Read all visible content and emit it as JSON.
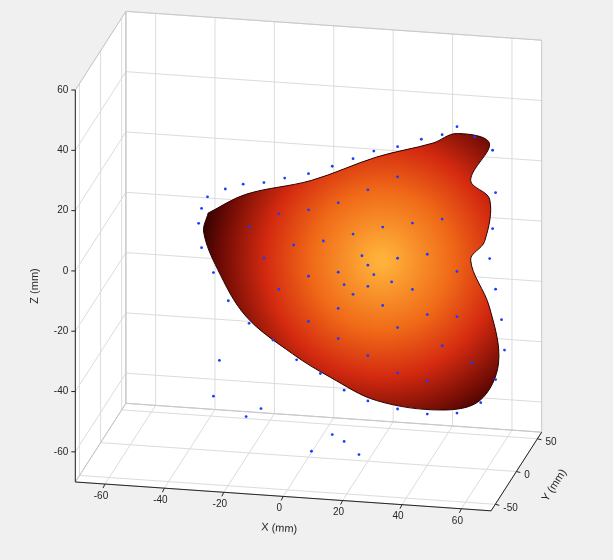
{
  "chart_data": {
    "type": "scatter3d",
    "x_label": "X (mm)",
    "y_label": "Y (mm)",
    "z_label": "Z (mm)",
    "xlim": [
      -70,
      70
    ],
    "ylim": [
      -60,
      60
    ],
    "zlim": [
      -70,
      60
    ],
    "xticks": [
      -60,
      -40,
      -20,
      0,
      20,
      40,
      60
    ],
    "yticks": [
      -50,
      0,
      50
    ],
    "zticks": [
      -60,
      -40,
      -20,
      0,
      20,
      40,
      60
    ],
    "grid": true,
    "series": [
      {
        "type": "surface",
        "color": "#d42a10",
        "values": [
          [
            -33.8,
            0,
            8.6
          ],
          [
            -21.1,
            0,
            15.7
          ],
          [
            0.9,
            0,
            21.8
          ],
          [
            23.0,
            0,
            31.1
          ],
          [
            41.9,
            0,
            37.0
          ],
          [
            49.8,
            0,
            40.7
          ],
          [
            60.9,
            0,
            38.3
          ],
          [
            54.6,
            0,
            25.5
          ],
          [
            61.0,
            0,
            19.7
          ],
          [
            59.3,
            0,
            5.6
          ],
          [
            54.6,
            0,
            -0.9
          ],
          [
            60.9,
            0,
            -16.0
          ],
          [
            64.0,
            0,
            -34.4
          ],
          [
            57.7,
            0,
            -47.3
          ],
          [
            45.1,
            0,
            -51.3
          ],
          [
            23.0,
            0,
            -49.7
          ],
          [
            7.3,
            0,
            -43.0
          ],
          [
            -5.4,
            0,
            -36.1
          ],
          [
            -21.1,
            0,
            -24.7
          ],
          [
            -30.6,
            0,
            -9.8
          ],
          [
            -35.3,
            0,
            2.2
          ]
        ]
      },
      {
        "type": "scatter",
        "color": "#1a3cff",
        "marker": "point",
        "values": [
          [
            -36,
            0,
            10
          ],
          [
            -34,
            0,
            14
          ],
          [
            -28,
            0,
            17
          ],
          [
            -22,
            0,
            19
          ],
          [
            -15,
            0,
            20
          ],
          [
            -8,
            0,
            22
          ],
          [
            0,
            0,
            24
          ],
          [
            8,
            0,
            27
          ],
          [
            15,
            0,
            30
          ],
          [
            22,
            0,
            33
          ],
          [
            30,
            0,
            35
          ],
          [
            38,
            0,
            38
          ],
          [
            45,
            0,
            40
          ],
          [
            50,
            0,
            43
          ],
          [
            56,
            0,
            40
          ],
          [
            62,
            0,
            36
          ],
          [
            63,
            0,
            22
          ],
          [
            62,
            0,
            10
          ],
          [
            61,
            0,
            0
          ],
          [
            63,
            0,
            -10
          ],
          [
            65,
            0,
            -20
          ],
          [
            66,
            0,
            -30
          ],
          [
            63,
            0,
            -40
          ],
          [
            58,
            0,
            -48
          ],
          [
            50,
            0,
            -52
          ],
          [
            40,
            0,
            -53
          ],
          [
            30,
            0,
            -52
          ],
          [
            20,
            0,
            -50
          ],
          [
            12,
            0,
            -47
          ],
          [
            4,
            0,
            -42
          ],
          [
            -4,
            0,
            -38
          ],
          [
            -12,
            0,
            -32
          ],
          [
            -20,
            0,
            -27
          ],
          [
            -27,
            0,
            -20
          ],
          [
            -32,
            0,
            -11
          ],
          [
            -36,
            0,
            -3
          ],
          [
            -37,
            0,
            5
          ],
          [
            -20,
            0,
            5
          ],
          [
            -10,
            0,
            10
          ],
          [
            0,
            0,
            12
          ],
          [
            10,
            0,
            15
          ],
          [
            20,
            0,
            20
          ],
          [
            30,
            0,
            25
          ],
          [
            -15,
            0,
            -5
          ],
          [
            -5,
            0,
            0
          ],
          [
            5,
            0,
            2
          ],
          [
            15,
            0,
            5
          ],
          [
            25,
            0,
            8
          ],
          [
            35,
            0,
            10
          ],
          [
            45,
            0,
            12
          ],
          [
            -10,
            0,
            -15
          ],
          [
            0,
            0,
            -10
          ],
          [
            10,
            0,
            -8
          ],
          [
            20,
            0,
            -5
          ],
          [
            30,
            0,
            -2
          ],
          [
            40,
            0,
            0
          ],
          [
            50,
            0,
            -5
          ],
          [
            0,
            0,
            -25
          ],
          [
            10,
            0,
            -20
          ],
          [
            15,
            0,
            -15
          ],
          [
            20,
            0,
            -12
          ],
          [
            25,
            0,
            -18
          ],
          [
            30,
            0,
            -25
          ],
          [
            35,
            0,
            -12
          ],
          [
            40,
            0,
            -20
          ],
          [
            45,
            0,
            -30
          ],
          [
            50,
            0,
            -20
          ],
          [
            55,
            0,
            -35
          ],
          [
            20,
            0,
            -35
          ],
          [
            30,
            0,
            -40
          ],
          [
            40,
            0,
            -42
          ],
          [
            10,
            0,
            -30
          ],
          [
            18,
            0,
            -2
          ],
          [
            22,
            0,
            -8
          ],
          [
            28,
            0,
            -10
          ],
          [
            12,
            0,
            -12
          ],
          [
            1,
            0,
            -68
          ],
          [
            12,
            0,
            -64
          ],
          [
            17,
            0,
            -68
          ],
          [
            -21,
            0,
            -58
          ],
          [
            -16,
            0,
            -55
          ],
          [
            -32,
            0,
            -52
          ],
          [
            8,
            0,
            -62
          ],
          [
            -30,
            0,
            -40
          ]
        ]
      }
    ]
  }
}
